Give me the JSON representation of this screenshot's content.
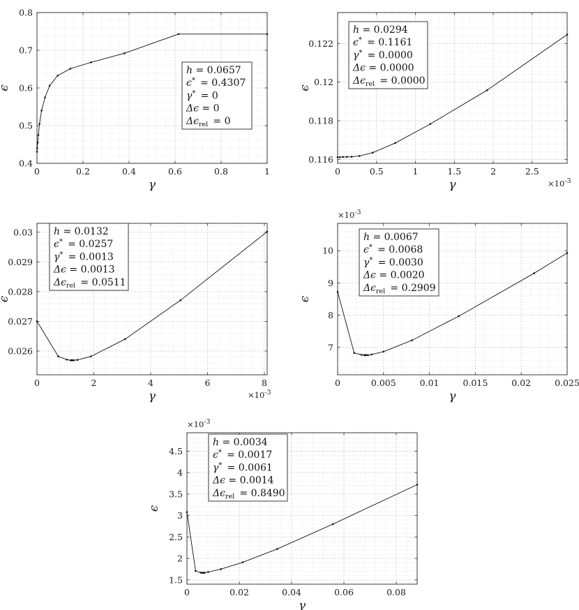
{
  "chart_data": [
    {
      "type": "line",
      "xlabel": "γ",
      "ylabel": "ϵ",
      "xlim": [
        0,
        1
      ],
      "ylim": [
        0.4,
        0.8
      ],
      "xticks": [
        0,
        0.2,
        0.4,
        0.6,
        0.8,
        1
      ],
      "xtick_labels": [
        "0",
        "0.2",
        "0.4",
        "0.6",
        "0.8",
        "1"
      ],
      "yticks": [
        0.4,
        0.5,
        0.6,
        0.7,
        0.8
      ],
      "ytick_labels": [
        "0.4",
        "0.5",
        "0.6",
        "0.7",
        "0.8"
      ],
      "x_multiplier": "",
      "y_multiplier": "",
      "grid": true,
      "legend": "center-right",
      "x": [
        0,
        0.001,
        0.003,
        0.006,
        0.011,
        0.02,
        0.035,
        0.055,
        0.09,
        0.145,
        0.235,
        0.38,
        0.615,
        1.0
      ],
      "y": [
        0.4307,
        0.44,
        0.455,
        0.475,
        0.505,
        0.54,
        0.575,
        0.606,
        0.633,
        0.651,
        0.668,
        0.692,
        0.743,
        0.743
      ],
      "legend_lines": [
        {
          "sym": "h",
          "sup": "",
          "sub": "",
          "value": "= 0.0657"
        },
        {
          "sym": "ϵ",
          "sup": "*",
          "sub": "",
          "value": "= 0.4307"
        },
        {
          "sym": "γ",
          "sup": "*",
          "sub": "",
          "value": "= 0"
        },
        {
          "sym": "Δϵ",
          "sup": "",
          "sub": "",
          "value": "= 0"
        },
        {
          "sym": "Δϵ",
          "sup": "",
          "sub": "rel",
          "value": "= 0"
        }
      ]
    },
    {
      "type": "line",
      "xlabel": "γ",
      "ylabel": "ϵ",
      "xlim": [
        0,
        2.95
      ],
      "ylim": [
        0.1158,
        0.1236
      ],
      "xticks": [
        0,
        0.5,
        1,
        1.5,
        2,
        2.5
      ],
      "xtick_labels": [
        "0",
        "0.5",
        "1",
        "1.5",
        "2",
        "2.5"
      ],
      "yticks": [
        0.116,
        0.118,
        0.12,
        0.122
      ],
      "ytick_labels": [
        "0.116",
        "0.118",
        "0.12",
        "0.122"
      ],
      "x_multiplier": "×10",
      "x_multiplier_exp": "-3",
      "y_multiplier": "",
      "grid": true,
      "legend": "top-left",
      "x": [
        0,
        0.03,
        0.07,
        0.12,
        0.18,
        0.28,
        0.45,
        0.74,
        1.19,
        1.92,
        2.95
      ],
      "y": [
        0.11612,
        0.11612,
        0.11613,
        0.11613,
        0.11614,
        0.11618,
        0.11635,
        0.11685,
        0.11783,
        0.11958,
        0.12246
      ],
      "legend_lines": [
        {
          "sym": "h",
          "sup": "",
          "sub": "",
          "value": "= 0.0294"
        },
        {
          "sym": "ϵ",
          "sup": "*",
          "sub": "",
          "value": "= 0.1161"
        },
        {
          "sym": "γ",
          "sup": "*",
          "sub": "",
          "value": "= 0.0000"
        },
        {
          "sym": "Δϵ",
          "sup": "",
          "sub": "",
          "value": "= 0.0000"
        },
        {
          "sym": "Δϵ",
          "sup": "",
          "sub": "rel",
          "value": "= 0.0000"
        }
      ]
    },
    {
      "type": "line",
      "xlabel": "γ",
      "ylabel": "ϵ",
      "xlim": [
        0,
        8.1
      ],
      "ylim": [
        0.0252,
        0.0303
      ],
      "xticks": [
        0,
        2,
        4,
        6,
        8
      ],
      "xtick_labels": [
        "0",
        "2",
        "4",
        "6",
        "8"
      ],
      "yticks": [
        0.026,
        0.027,
        0.028,
        0.029,
        0.03
      ],
      "ytick_labels": [
        "0.026",
        "0.027",
        "0.028",
        "0.029",
        "0.03"
      ],
      "x_multiplier": "×10",
      "x_multiplier_exp": "-3",
      "y_multiplier": "",
      "grid": true,
      "legend": "top-left",
      "x": [
        0,
        0.75,
        1.05,
        1.18,
        1.22,
        1.26,
        1.3,
        1.42,
        1.9,
        3.1,
        5.05,
        8.1
      ],
      "y": [
        0.027,
        0.02582,
        0.02571,
        0.02569,
        0.02569,
        0.02569,
        0.02569,
        0.0257,
        0.02582,
        0.0264,
        0.02771,
        0.03002
      ],
      "legend_lines": [
        {
          "sym": "h",
          "sup": "",
          "sub": "",
          "value": "= 0.0132"
        },
        {
          "sym": "ϵ",
          "sup": "*",
          "sub": "",
          "value": "= 0.0257"
        },
        {
          "sym": "γ",
          "sup": "*",
          "sub": "",
          "value": "= 0.0013"
        },
        {
          "sym": "Δϵ",
          "sup": "",
          "sub": "",
          "value": "= 0.0013"
        },
        {
          "sym": "Δϵ",
          "sup": "",
          "sub": "rel",
          "value": "= 0.0511"
        }
      ]
    },
    {
      "type": "line",
      "xlabel": "γ",
      "ylabel": "ϵ",
      "xlim": [
        0,
        0.025
      ],
      "ylim": [
        6.15,
        10.85
      ],
      "xticks": [
        0,
        0.005,
        0.01,
        0.015,
        0.02,
        0.025
      ],
      "xtick_labels": [
        "0",
        "0.005",
        "0.01",
        "0.015",
        "0.02",
        "0.025"
      ],
      "yticks": [
        7,
        8,
        9,
        10
      ],
      "ytick_labels": [
        "7",
        "8",
        "9",
        "10"
      ],
      "x_multiplier": "",
      "y_multiplier": "×10",
      "y_multiplier_exp": "-3",
      "grid": true,
      "legend": "top-left",
      "x": [
        0,
        0.0018,
        0.0026,
        0.0029,
        0.003,
        0.0031,
        0.0033,
        0.0037,
        0.005,
        0.0081,
        0.0132,
        0.0214,
        0.025
      ],
      "y": [
        8.72,
        6.83,
        6.77,
        6.76,
        6.76,
        6.76,
        6.76,
        6.78,
        6.87,
        7.22,
        7.97,
        9.3,
        9.93
      ],
      "legend_lines": [
        {
          "sym": "h",
          "sup": "",
          "sub": "",
          "value": "= 0.0067"
        },
        {
          "sym": "ϵ",
          "sup": "*",
          "sub": "",
          "value": "= 0.0068"
        },
        {
          "sym": "γ",
          "sup": "*",
          "sub": "",
          "value": "= 0.0030"
        },
        {
          "sym": "Δϵ",
          "sup": "",
          "sub": "",
          "value": "= 0.0020"
        },
        {
          "sym": "Δϵ",
          "sup": "",
          "sub": "rel",
          "value": "= 0.2909"
        }
      ]
    },
    {
      "type": "line",
      "xlabel": "γ",
      "ylabel": "ϵ",
      "xlim": [
        0,
        0.088
      ],
      "ylim": [
        1.4,
        4.93
      ],
      "xticks": [
        0,
        0.02,
        0.04,
        0.06,
        0.08
      ],
      "xtick_labels": [
        "0",
        "0.02",
        "0.04",
        "0.06",
        "0.08"
      ],
      "yticks": [
        1.5,
        2,
        2.5,
        3,
        3.5,
        4,
        4.5
      ],
      "ytick_labels": [
        "1.5",
        "2",
        "2.5",
        "3",
        "3.5",
        "4",
        "4.5"
      ],
      "x_multiplier": "",
      "y_multiplier": "×10",
      "y_multiplier_exp": "-3",
      "grid": true,
      "legend": "top-left",
      "x": [
        0,
        0.0033,
        0.0052,
        0.0058,
        0.0061,
        0.0064,
        0.0068,
        0.0081,
        0.013,
        0.0213,
        0.0345,
        0.0558,
        0.088
      ],
      "y": [
        3.08,
        1.71,
        1.67,
        1.665,
        1.665,
        1.665,
        1.666,
        1.683,
        1.75,
        1.91,
        2.22,
        2.8,
        3.72
      ],
      "legend_lines": [
        {
          "sym": "h",
          "sup": "",
          "sub": "",
          "value": "= 0.0034"
        },
        {
          "sym": "ϵ",
          "sup": "*",
          "sub": "",
          "value": "= 0.0017"
        },
        {
          "sym": "γ",
          "sup": "*",
          "sub": "",
          "value": "= 0.0061"
        },
        {
          "sym": "Δϵ",
          "sup": "",
          "sub": "",
          "value": "= 0.0014"
        },
        {
          "sym": "Δϵ",
          "sup": "",
          "sub": "rel",
          "value": "= 0.8490"
        }
      ]
    }
  ]
}
